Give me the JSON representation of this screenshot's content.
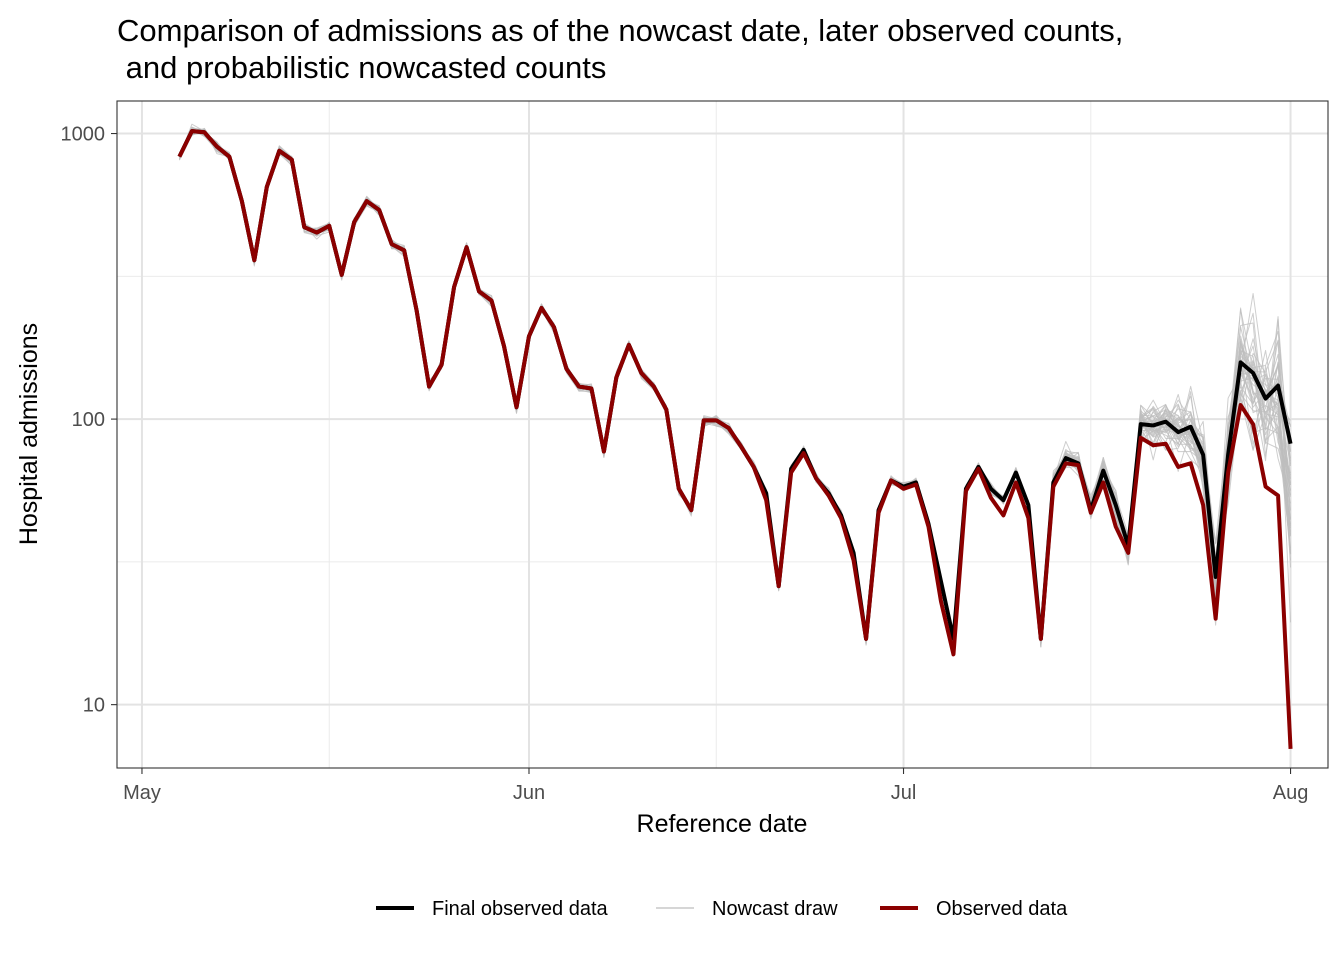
{
  "chart_data": {
    "type": "line",
    "title_line1": "Comparison of admissions as of the nowcast date, later observed counts,",
    "title_line2": " and probabilistic nowcasted counts",
    "xlabel": "Reference date",
    "ylabel": "Hospital admissions",
    "y_scale": "log10",
    "ylim": [
      6,
      1300
    ],
    "y_ticks": [
      {
        "value": 10,
        "label": "10"
      },
      {
        "value": 100,
        "label": "100"
      },
      {
        "value": 1000,
        "label": "1000"
      }
    ],
    "y_minor_ticks": [
      31.62,
      316.2
    ],
    "xlim": [
      "2024-04-29",
      "2024-08-04"
    ],
    "x_ticks": [
      {
        "value": "2024-05-01",
        "label": "May"
      },
      {
        "value": "2024-06-01",
        "label": "Jun"
      },
      {
        "value": "2024-07-01",
        "label": "Jul"
      },
      {
        "value": "2024-08-01",
        "label": "Aug"
      }
    ],
    "x_minor_ticks": [
      "2024-05-16",
      "2024-06-16",
      "2024-07-16"
    ],
    "grid": true,
    "legend_position": "bottom",
    "x_start": "2024-05-04",
    "series": [
      {
        "name": "Final observed data",
        "color": "#000000",
        "values": [
          830,
          1020,
          1010,
          900,
          830,
          580,
          360,
          650,
          870,
          810,
          470,
          450,
          475,
          320,
          490,
          580,
          540,
          410,
          390,
          240,
          130,
          155,
          290,
          400,
          280,
          260,
          180,
          110,
          195,
          245,
          210,
          150,
          130,
          128,
          77,
          140,
          182,
          145,
          130,
          108,
          57,
          48,
          99,
          99,
          93,
          80,
          68,
          55,
          26,
          67,
          78,
          62,
          55,
          46,
          34,
          17,
          48,
          61,
          58,
          60,
          43,
          27,
          17,
          57,
          68,
          57,
          52,
          65,
          50,
          17,
          60,
          73,
          70,
          48,
          66,
          50,
          36,
          96,
          95,
          98,
          90,
          94,
          75,
          28,
          75,
          158,
          145,
          118,
          131,
          82
        ]
      },
      {
        "name": "Observed data",
        "color": "#8b0000",
        "values": [
          830,
          1020,
          1010,
          900,
          830,
          580,
          360,
          650,
          870,
          810,
          470,
          450,
          475,
          320,
          490,
          580,
          540,
          410,
          390,
          240,
          130,
          155,
          290,
          400,
          280,
          260,
          180,
          110,
          195,
          245,
          210,
          150,
          130,
          128,
          77,
          140,
          182,
          145,
          130,
          108,
          57,
          48,
          99,
          99,
          93,
          80,
          68,
          52,
          26,
          65,
          76,
          62,
          54,
          45,
          32,
          17,
          47,
          61,
          57,
          59,
          42,
          23,
          15,
          56,
          67,
          53,
          46,
          60,
          45,
          17,
          58,
          70,
          69,
          47,
          60,
          42,
          34,
          86,
          81,
          82,
          68,
          70,
          50,
          20,
          65,
          112,
          96,
          58,
          54,
          7
        ]
      }
    ],
    "nowcast": {
      "name": "Nowcast draw",
      "color": "#bebebe",
      "draws": 40,
      "uncertainty_start_index": 69
    }
  }
}
